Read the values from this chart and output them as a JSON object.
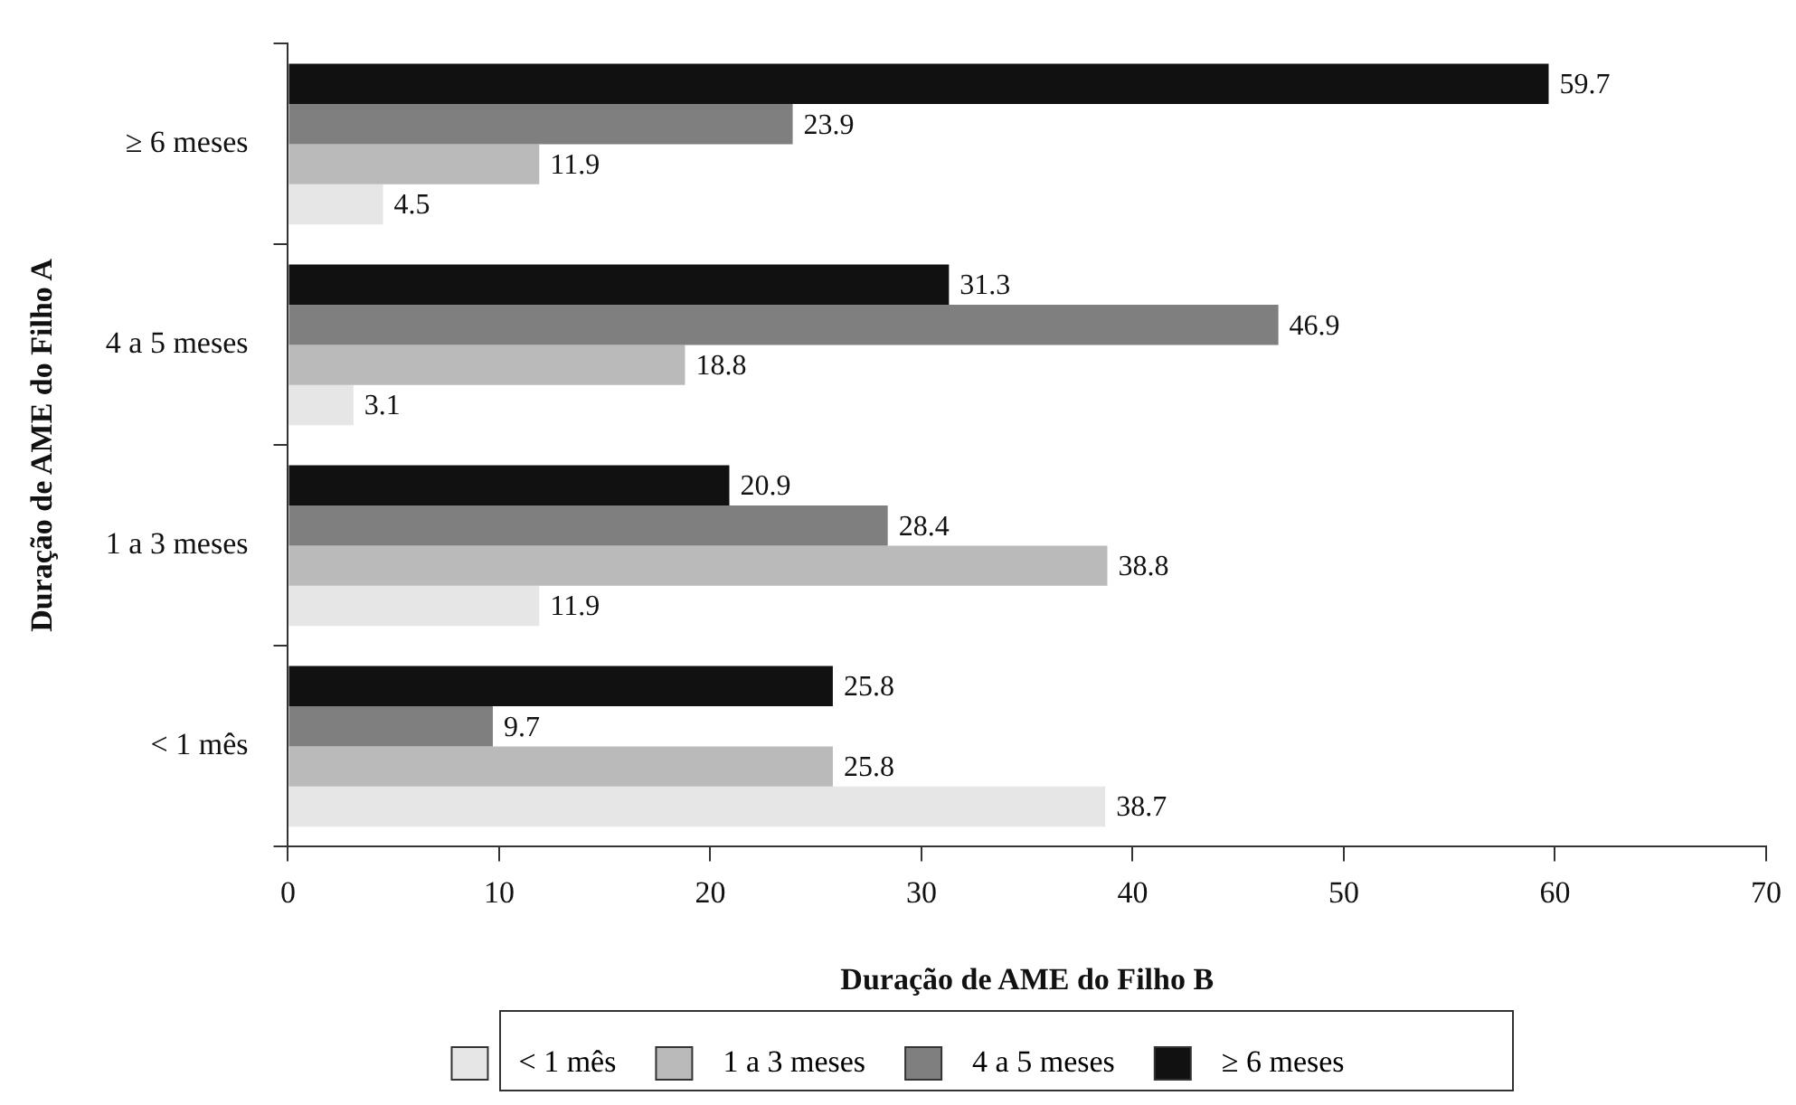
{
  "chart_data": {
    "type": "bar",
    "orientation": "horizontal",
    "xlabel": "Duração de AME do Filho B",
    "ylabel": "Duração de AME do Filho A",
    "categories": [
      "≥ 6 meses",
      "4 a 5 meses",
      "1 a 3 meses",
      "< 1 mês"
    ],
    "series": [
      {
        "name": "< 1 mês",
        "color": "#e6e6e6",
        "values": [
          4.5,
          3.1,
          11.9,
          38.7
        ]
      },
      {
        "name": "1 a 3 meses",
        "color": "#bababa",
        "values": [
          11.9,
          18.8,
          38.8,
          25.8
        ]
      },
      {
        "name": "4 a 5 meses",
        "color": "#7f7f7f",
        "values": [
          23.9,
          46.9,
          28.4,
          9.7
        ]
      },
      {
        "name": "≥ 6 meses",
        "color": "#111111",
        "values": [
          59.7,
          31.3,
          20.9,
          25.8
        ]
      }
    ],
    "xlim": [
      0,
      70
    ],
    "xticks": [
      0,
      10,
      20,
      30,
      40,
      50,
      60,
      70
    ],
    "grid": false,
    "legend": "bottom",
    "data_labels": true
  }
}
